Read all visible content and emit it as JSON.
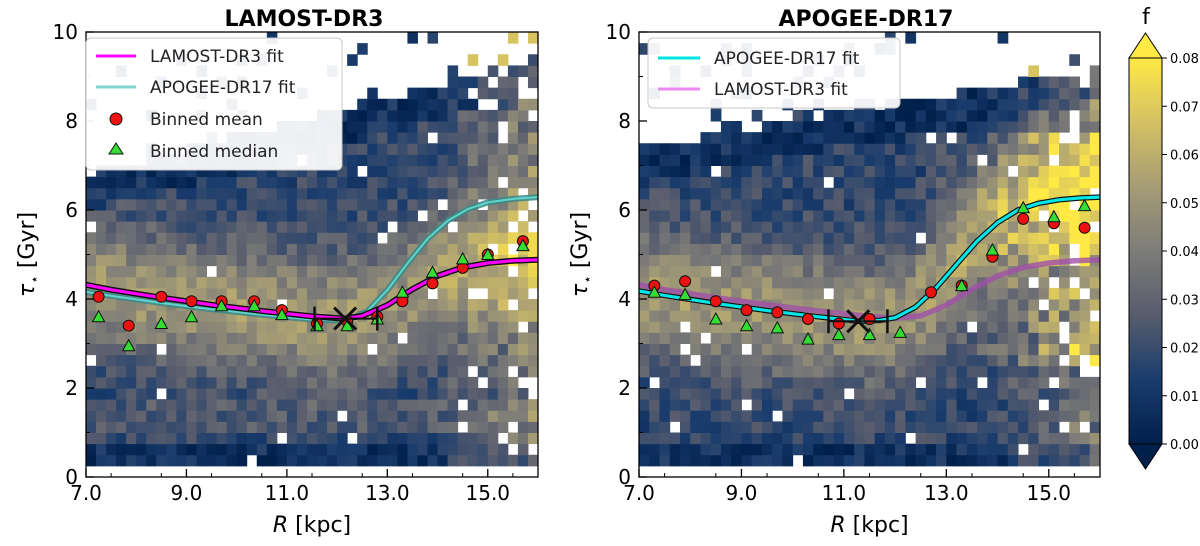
{
  "colors": {
    "colormap": [
      "#00204c",
      "#1b3d6d",
      "#575c6d",
      "#7d7c78",
      "#a69d75",
      "#d3c064",
      "#ffe945"
    ],
    "lamost_fit": "#ff00ff",
    "apogee_fit": "#00e5e5",
    "apogee_fit_faded": "#7fd4d0",
    "lamost_fit_faded": "#a050a8",
    "marker_mean": "#ee1111",
    "marker_median": "#33dd33",
    "cross": "#111111"
  },
  "chart_data": [
    {
      "type": "heatmap",
      "name": "LAMOST-DR3",
      "title": "LAMOST-DR3",
      "xlabel_main": "R",
      "xlabel_unit": " [kpc]",
      "ylabel_main": "τ",
      "ylabel_sub": "⋆",
      "ylabel_unit": " [Gyr]",
      "xlim": [
        7.0,
        16.0
      ],
      "ylim": [
        0,
        10
      ],
      "xticks": [
        7.0,
        9.0,
        11.0,
        13.0,
        15.0
      ],
      "xtick_labels": [
        "7.0",
        "9.0",
        "11.0",
        "13.0",
        "15.0"
      ],
      "yticks": [
        0,
        2,
        4,
        6,
        8,
        10
      ],
      "ytick_labels": [
        "0",
        "2",
        "4",
        "6",
        "8",
        "10"
      ],
      "legend": {
        "location": "upper-left",
        "items": [
          {
            "label": "LAMOST-DR3 fit",
            "kind": "line",
            "color": "#ff00ff"
          },
          {
            "label": "APOGEE-DR17 fit",
            "kind": "line",
            "color": "#7fd4d0"
          },
          {
            "label": "Binned mean",
            "kind": "circle",
            "color": "#ee1111"
          },
          {
            "label": "Binned median",
            "kind": "triangle",
            "color": "#33dd33"
          }
        ]
      },
      "fits": [
        {
          "name": "APOGEE-DR17 fit",
          "x": [
            7.0,
            7.5,
            8.0,
            8.5,
            9.0,
            9.5,
            10.0,
            10.5,
            11.0,
            11.5,
            11.9,
            12.2,
            12.6,
            13.0,
            13.4,
            13.8,
            14.2,
            14.6,
            15.0,
            15.5,
            16.0
          ],
          "y": [
            4.16,
            4.07,
            3.99,
            3.91,
            3.84,
            3.77,
            3.71,
            3.65,
            3.59,
            3.54,
            3.52,
            3.53,
            3.72,
            4.2,
            4.8,
            5.35,
            5.76,
            6.02,
            6.17,
            6.25,
            6.29
          ]
        },
        {
          "name": "LAMOST-DR3 fit",
          "x": [
            7.0,
            7.5,
            8.0,
            8.5,
            9.0,
            9.5,
            10.0,
            10.5,
            11.0,
            11.5,
            12.0,
            12.16,
            12.5,
            13.0,
            13.5,
            14.0,
            14.5,
            15.0,
            15.5,
            16.0
          ],
          "y": [
            4.32,
            4.21,
            4.12,
            4.03,
            3.95,
            3.87,
            3.8,
            3.73,
            3.67,
            3.61,
            3.57,
            3.56,
            3.62,
            3.86,
            4.22,
            4.52,
            4.71,
            4.81,
            4.86,
            4.88
          ]
        }
      ],
      "breakpoint": {
        "x": 12.16,
        "y": 3.56,
        "err_low": 11.55,
        "err_high": 12.8
      },
      "binned_mean": {
        "x": [
          7.25,
          7.85,
          8.5,
          9.1,
          9.7,
          10.35,
          10.9,
          11.6,
          12.2,
          12.8,
          13.3,
          13.9,
          14.5,
          15.0,
          15.7
        ],
        "y": [
          4.05,
          3.4,
          4.05,
          3.95,
          3.95,
          3.95,
          3.75,
          3.45,
          3.5,
          3.6,
          3.95,
          4.35,
          4.7,
          5.0,
          5.3
        ]
      },
      "binned_median": {
        "x": [
          7.25,
          7.85,
          8.5,
          9.1,
          9.7,
          10.35,
          10.9,
          11.6,
          12.2,
          12.8,
          13.3,
          13.9,
          14.5,
          15.0,
          15.7
        ],
        "y": [
          3.6,
          2.95,
          3.45,
          3.6,
          3.85,
          3.85,
          3.65,
          3.4,
          3.4,
          3.55,
          4.15,
          4.6,
          4.9,
          5.0,
          5.2
        ]
      }
    },
    {
      "type": "heatmap",
      "name": "APOGEE-DR17",
      "title": "APOGEE-DR17",
      "xlabel_main": "R",
      "xlabel_unit": " [kpc]",
      "ylabel_main": "τ",
      "ylabel_sub": "⋆",
      "ylabel_unit": " [Gyr]",
      "xlim": [
        7.0,
        16.0
      ],
      "ylim": [
        0,
        10
      ],
      "xticks": [
        7.0,
        9.0,
        11.0,
        13.0,
        15.0
      ],
      "xtick_labels": [
        "7.0",
        "9.0",
        "11.0",
        "13.0",
        "15.0"
      ],
      "yticks": [
        0,
        2,
        4,
        6,
        8,
        10
      ],
      "ytick_labels": [
        "0",
        "2",
        "4",
        "6",
        "8",
        "10"
      ],
      "legend": {
        "location": "upper-left",
        "items": [
          {
            "label": "APOGEE-DR17 fit",
            "kind": "line",
            "color": "#00e5e5"
          },
          {
            "label": "LAMOST-DR3 fit",
            "kind": "line",
            "color": "#ee88ee"
          }
        ]
      },
      "fits": [
        {
          "name": "LAMOST-DR3 fit",
          "x": [
            7.0,
            7.5,
            8.0,
            8.5,
            9.0,
            9.5,
            10.0,
            10.5,
            11.0,
            11.5,
            12.0,
            12.5,
            13.0,
            13.5,
            14.0,
            14.5,
            15.0,
            15.5,
            16.0
          ],
          "y": [
            4.32,
            4.21,
            4.12,
            4.03,
            3.95,
            3.87,
            3.8,
            3.73,
            3.67,
            3.61,
            3.57,
            3.62,
            3.86,
            4.22,
            4.52,
            4.71,
            4.81,
            4.86,
            4.88
          ]
        },
        {
          "name": "APOGEE-DR17 fit",
          "x": [
            7.0,
            7.5,
            8.0,
            8.5,
            9.0,
            9.5,
            10.0,
            10.5,
            11.0,
            11.3,
            11.7,
            12.0,
            12.4,
            12.8,
            13.2,
            13.6,
            14.0,
            14.4,
            14.8,
            15.2,
            15.6,
            16.0
          ],
          "y": [
            4.18,
            4.08,
            3.99,
            3.9,
            3.82,
            3.74,
            3.67,
            3.6,
            3.54,
            3.5,
            3.52,
            3.58,
            3.82,
            4.25,
            4.78,
            5.3,
            5.72,
            6.0,
            6.15,
            6.23,
            6.27,
            6.29
          ]
        }
      ],
      "breakpoint": {
        "x": 11.28,
        "y": 3.5,
        "err_low": 10.7,
        "err_high": 11.85
      },
      "binned_mean": {
        "x": [
          7.3,
          7.9,
          8.5,
          9.1,
          9.7,
          10.3,
          10.9,
          11.5,
          12.7,
          13.3,
          13.9,
          14.5,
          15.1,
          15.7
        ],
        "y": [
          4.3,
          4.4,
          3.95,
          3.75,
          3.7,
          3.55,
          3.45,
          3.55,
          4.15,
          4.3,
          4.95,
          5.8,
          5.7,
          5.6
        ]
      },
      "binned_median": {
        "x": [
          7.3,
          7.9,
          8.5,
          9.1,
          9.7,
          10.3,
          10.9,
          11.5,
          12.1,
          13.3,
          13.9,
          14.5,
          15.1,
          15.7
        ],
        "y": [
          4.15,
          4.1,
          3.55,
          3.4,
          3.35,
          3.1,
          3.2,
          3.2,
          3.25,
          4.3,
          5.1,
          6.05,
          5.85,
          6.1
        ]
      }
    }
  ],
  "colorbar": {
    "label": "f",
    "min": 0.0,
    "max": 0.08,
    "ticks": [
      0.0,
      0.01,
      0.02,
      0.03,
      0.04,
      0.05,
      0.06,
      0.07,
      0.08
    ],
    "tick_labels": [
      "0.00",
      "0.01",
      "0.02",
      "0.03",
      "0.04",
      "0.05",
      "0.06",
      "0.07",
      "0.08"
    ],
    "extend": "both"
  }
}
